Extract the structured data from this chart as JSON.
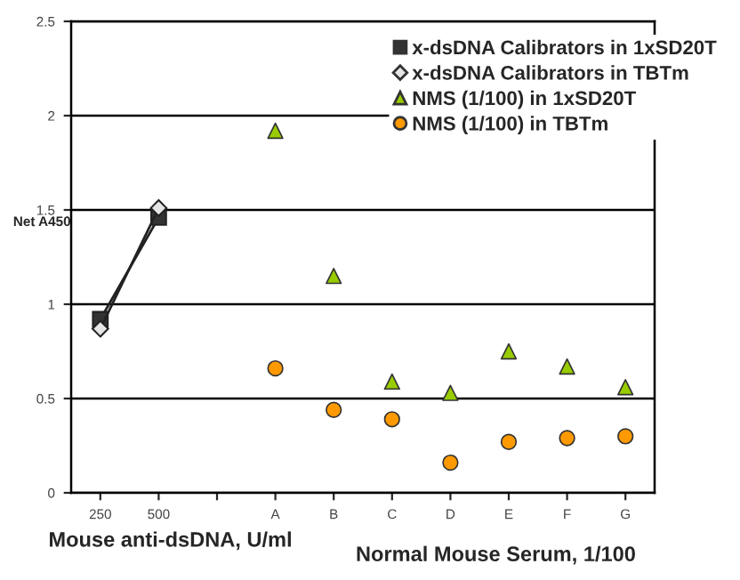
{
  "chart_data": {
    "type": "scatter",
    "categories": [
      "250",
      "500",
      null,
      "A",
      "B",
      "C",
      "D",
      "E",
      "F",
      "G"
    ],
    "xlabel": "Mouse anti-dsDNA, U/ml",
    "ylabel": "Net A450",
    "annotations": [
      "Normal Mouse Serum, 1/100"
    ],
    "ylim": [
      0,
      2.5
    ],
    "yticks": [
      0,
      0.5,
      1,
      1.5,
      2,
      2.5
    ],
    "grid": "y",
    "legend": "top right",
    "series": [
      {
        "name": "x-dsDNA Calibrators in 1xSD20T",
        "type": "line",
        "marker": "square",
        "color": "#333333",
        "values": [
          0.92,
          1.46,
          null,
          null,
          null,
          null,
          null,
          null,
          null,
          null
        ]
      },
      {
        "name": "x-dsDNA Calibrators in TBTm",
        "type": "line",
        "marker": "diamond",
        "color": "#e6e6e6",
        "values": [
          0.87,
          1.51,
          null,
          null,
          null,
          null,
          null,
          null,
          null,
          null
        ]
      },
      {
        "name": "NMS (1/100) in 1xSD20T",
        "marker": "triangle",
        "color": "#99cc00",
        "values": [
          null,
          null,
          null,
          1.92,
          1.15,
          0.59,
          0.53,
          0.75,
          0.67,
          0.56
        ]
      },
      {
        "name": "NMS (1/100) in TBTm",
        "marker": "circle",
        "color": "#ff9900",
        "values": [
          null,
          null,
          null,
          0.66,
          0.44,
          0.39,
          0.16,
          0.27,
          0.29,
          0.3
        ]
      }
    ]
  }
}
